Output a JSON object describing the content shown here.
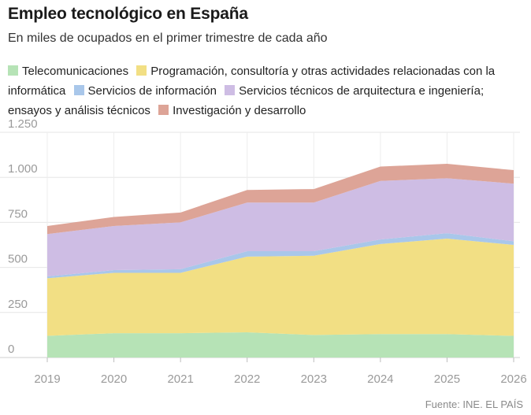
{
  "header": {
    "title": "Empleo tecnológico en España",
    "subtitle": "En miles de ocupados en el primer trimestre de cada año"
  },
  "source": "Fuente: INE. EL PAÍS",
  "chart_data": {
    "type": "area",
    "stacked": true,
    "x": [
      "2019",
      "2020",
      "2021",
      "2022",
      "2023",
      "2024",
      "2025",
      "2026"
    ],
    "ylim": [
      0,
      1250
    ],
    "yticks": [
      0,
      250,
      500,
      750,
      1000,
      1250
    ],
    "ytick_labels": [
      "0",
      "250",
      "500",
      "750",
      "1.000",
      "1.250"
    ],
    "grid": true,
    "legend_position": "top",
    "series": [
      {
        "name": "Telecomunicaciones",
        "color": "#b6e3b6",
        "values": [
          120,
          135,
          135,
          140,
          125,
          130,
          130,
          120
        ]
      },
      {
        "name": "Programación, consultoría y otras actividades relacionadas con la informática",
        "color": "#f2df84",
        "values": [
          320,
          335,
          335,
          420,
          440,
          500,
          530,
          505
        ]
      },
      {
        "name": "Servicios de información",
        "color": "#a9c7ea",
        "values": [
          10,
          15,
          20,
          30,
          25,
          25,
          30,
          20
        ]
      },
      {
        "name": "Servicios técnicos de arquitectura e ingeniería; ensayos y análisis técnicos",
        "color": "#cebde4",
        "values": [
          235,
          245,
          260,
          270,
          270,
          325,
          305,
          320
        ]
      },
      {
        "name": "Investigación y desarrollo",
        "color": "#dda497",
        "values": [
          45,
          50,
          55,
          70,
          75,
          80,
          80,
          75
        ]
      }
    ]
  }
}
